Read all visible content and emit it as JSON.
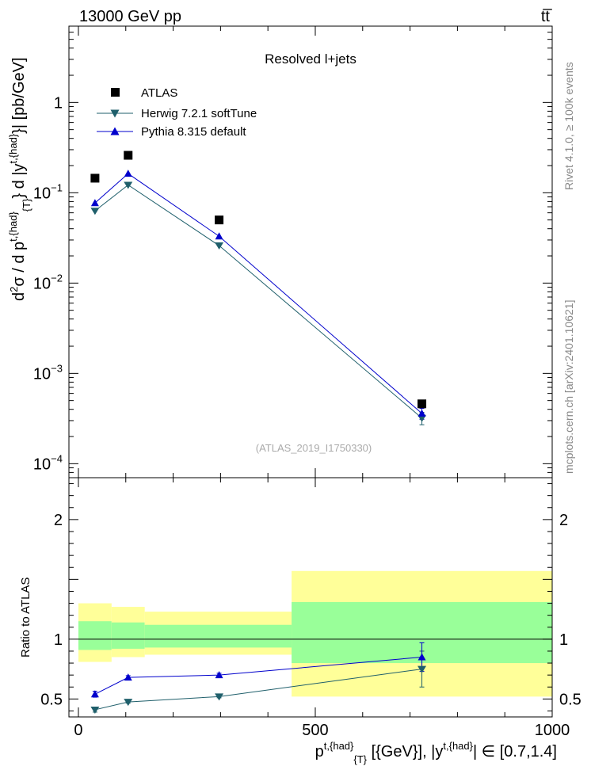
{
  "header": {
    "energy_label": "13000 GeV pp",
    "process_label": "tt̅"
  },
  "side_labels": {
    "rivet": "Rivet 4.1.0, ≥ 100k events",
    "mcplots": "mcplots.cern.ch [arXiv:2401.10621]"
  },
  "colors": {
    "atlas": "#000000",
    "herwig": "#1f5f6b",
    "pythia": "#0000cc",
    "band_yellow": "#ffff99",
    "band_green": "#99ff99"
  },
  "chart_data": [
    {
      "type": "line",
      "title": "Resolved l+jets",
      "watermark": "(ATLAS_2019_I1750330)",
      "ylabel": {
        "prefix": "d",
        "sup1": "2",
        "mid": "σ / d p",
        "sup2": "t,{had}",
        "sub2": "{T}",
        "mid2": "} d |y",
        "sup3": "t,{had}",
        "suffix": "}| [pb/GeV]"
      },
      "yscale": "log",
      "ylim": [
        7e-05,
        7
      ],
      "xlim": [
        -20,
        1000
      ],
      "ytick_labels": [
        {
          "value": 1,
          "label": "1"
        },
        {
          "value": 0.1,
          "label": "10",
          "exp": "−1"
        },
        {
          "value": 0.01,
          "label": "10",
          "exp": "−2"
        },
        {
          "value": 0.001,
          "label": "10",
          "exp": "−3"
        },
        {
          "value": 0.0001,
          "label": "10",
          "exp": "−4"
        }
      ],
      "legend": {
        "placement": "top-left",
        "entries": [
          "ATLAS",
          "Herwig 7.2.1 softTune",
          "Pythia 8.315 default"
        ]
      },
      "series": [
        {
          "name": "ATLAS",
          "x": [
            35,
            105,
            297,
            725
          ],
          "y": [
            0.145,
            0.26,
            0.05,
            0.00046
          ]
        },
        {
          "name": "Herwig 7.2.1 softTune",
          "x": [
            35,
            105,
            297,
            725
          ],
          "y": [
            0.063,
            0.122,
            0.026,
            0.00032
          ],
          "err": [
            0,
            0,
            0,
            5e-05
          ]
        },
        {
          "name": "Pythia 8.315 default",
          "x": [
            35,
            105,
            297,
            725
          ],
          "y": [
            0.077,
            0.163,
            0.033,
            0.00036
          ],
          "err": [
            0,
            0,
            0,
            5e-05
          ]
        }
      ]
    },
    {
      "type": "line",
      "ylabel": "Ratio to ATLAS",
      "xlabel": {
        "p": "p",
        "sup1": "t,{had}",
        "sub1": "{T}",
        "mid": " [{GeV}], |y",
        "sup2": "t,{had}",
        "suffix": "| ∈ [0.7,1.4]"
      },
      "xlim": [
        -20,
        1000
      ],
      "ylim": [
        0.35,
        2.35
      ],
      "xticks": [
        0,
        500,
        1000
      ],
      "xtick_labels": [
        "0",
        "500",
        "1000"
      ],
      "yticks": [
        0.5,
        1,
        2
      ],
      "ytick_labels": [
        "0.5",
        "1",
        "2"
      ],
      "bins": [
        {
          "lo": 0,
          "hi": 70,
          "yellow": [
            0.81,
            1.3
          ],
          "green": [
            0.91,
            1.15
          ]
        },
        {
          "lo": 70,
          "hi": 140,
          "yellow": [
            0.85,
            1.27
          ],
          "green": [
            0.92,
            1.14
          ]
        },
        {
          "lo": 140,
          "hi": 450,
          "yellow": [
            0.87,
            1.23
          ],
          "green": [
            0.93,
            1.12
          ]
        },
        {
          "lo": 450,
          "hi": 1000,
          "yellow": [
            0.52,
            1.57
          ],
          "green": [
            0.8,
            1.31
          ]
        }
      ],
      "series": [
        {
          "name": "Herwig 7.2.1 softTune",
          "x": [
            35,
            105,
            297,
            725
          ],
          "y": [
            0.41,
            0.475,
            0.52,
            0.75
          ],
          "err": [
            0.02,
            0.01,
            0.01,
            0.15
          ]
        },
        {
          "name": "Pythia 8.315 default",
          "x": [
            35,
            105,
            297,
            725
          ],
          "y": [
            0.54,
            0.68,
            0.7,
            0.85
          ],
          "err": [
            0.025,
            0.015,
            0.015,
            0.12
          ]
        }
      ]
    }
  ]
}
